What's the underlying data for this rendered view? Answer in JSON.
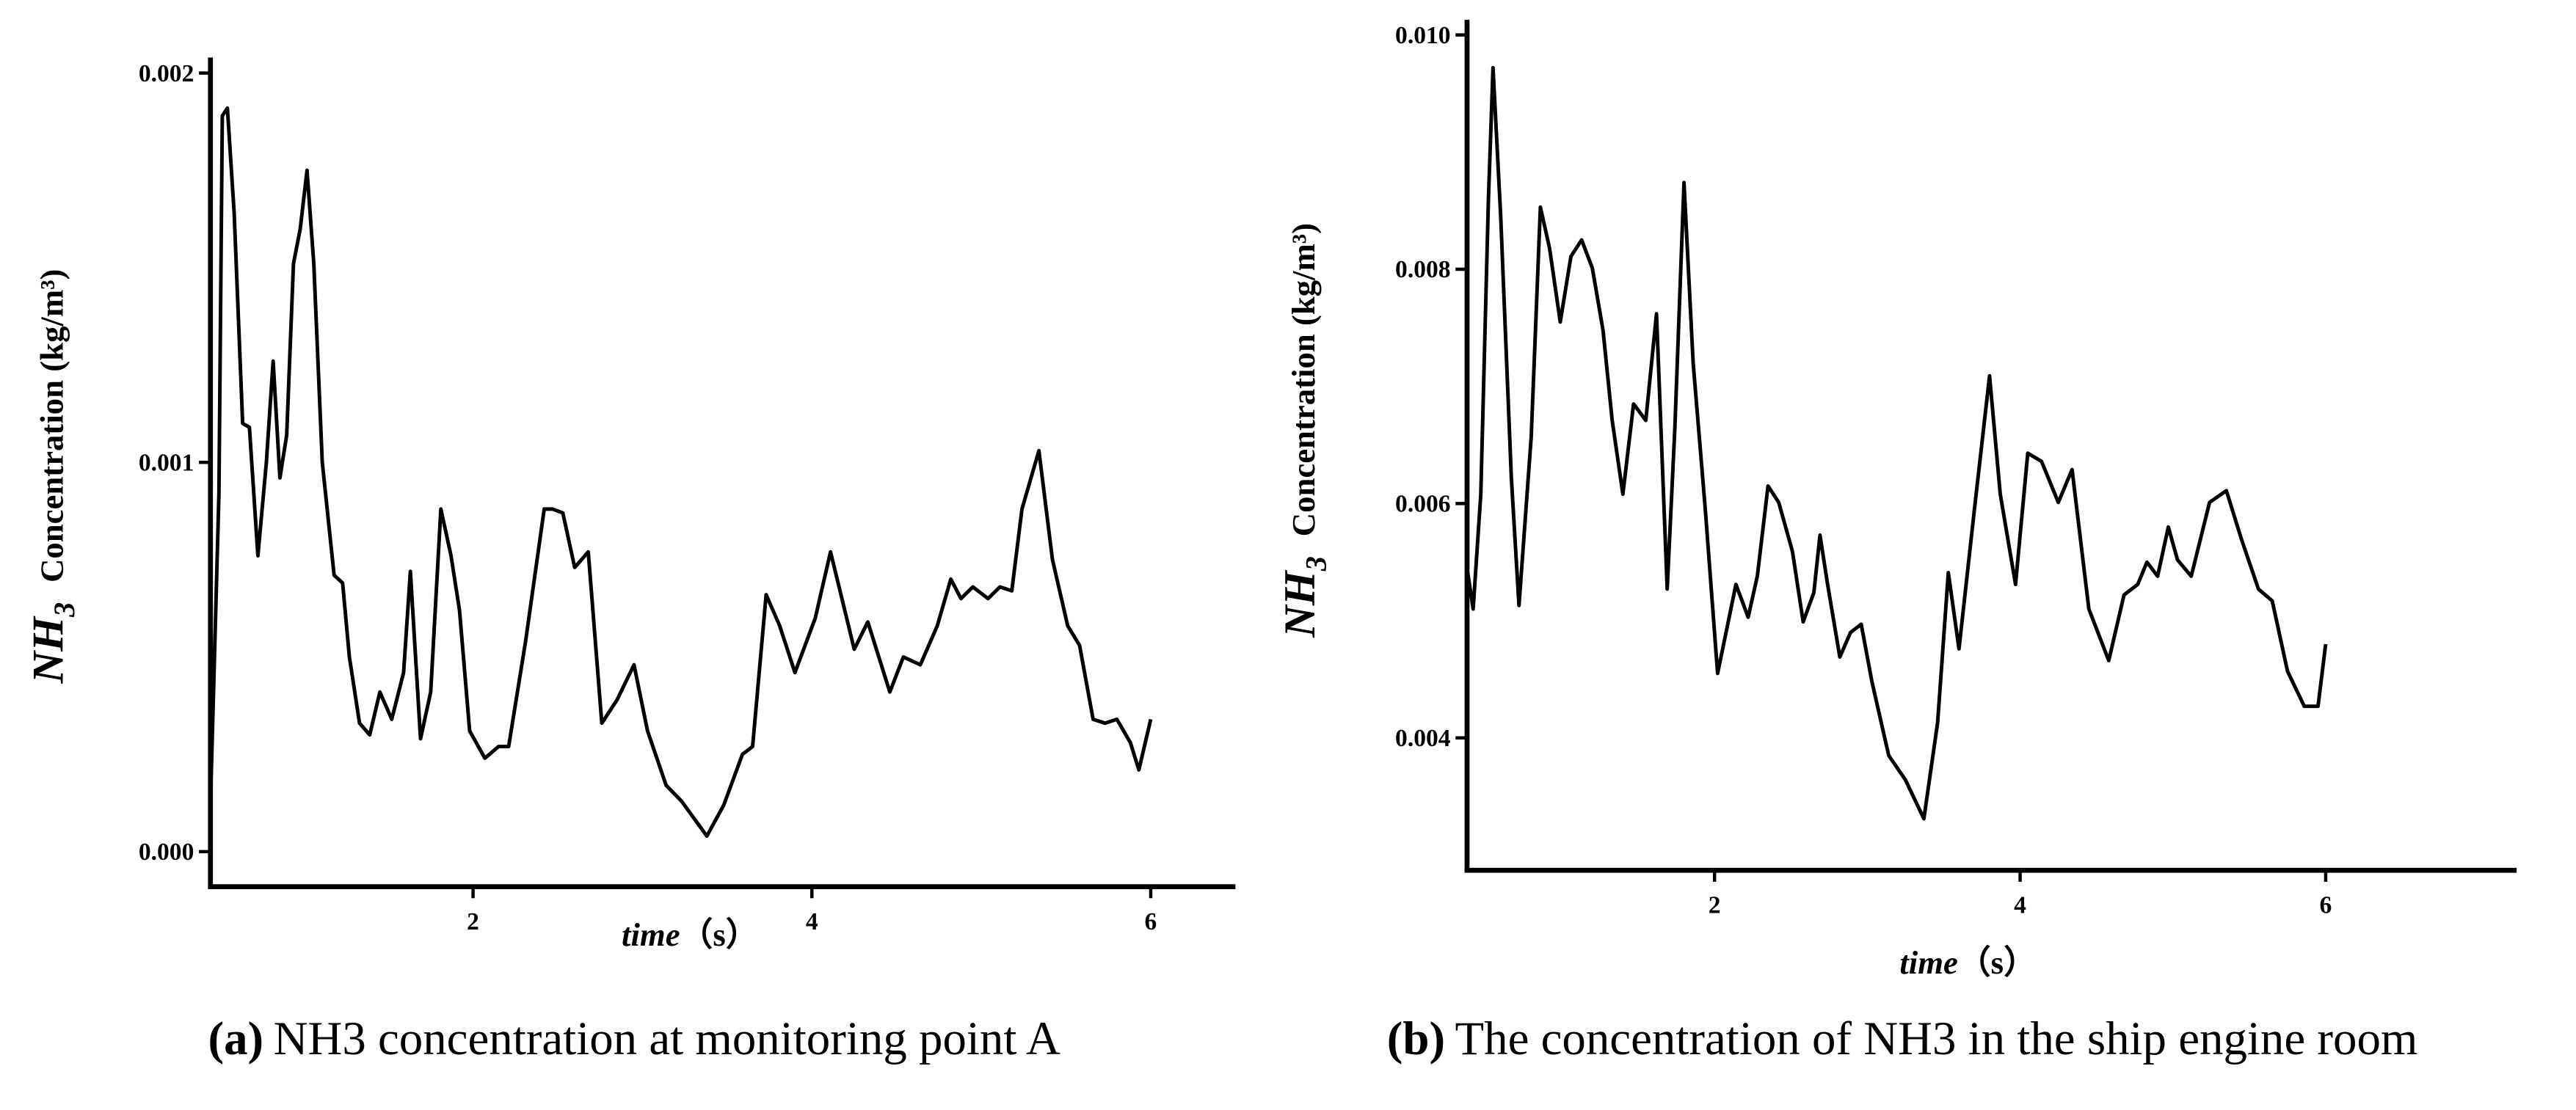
{
  "chart_data": [
    {
      "type": "line",
      "color": "#000000",
      "x_label_var": "time",
      "x_label_unit": "（s）",
      "y_label_species": "NH",
      "y_label_subscript": "3",
      "y_label_text": "Concentration (kg/m³)",
      "caption_label": "(a)",
      "caption": "NH3 concentration at monitoring point A",
      "xlim": [
        0.45,
        6.5
      ],
      "xticks": [
        2,
        4,
        6
      ],
      "ylim": [
        -9e-05,
        0.00204
      ],
      "yticks": [
        {
          "value": 0,
          "label": "0.000"
        },
        0.001,
        0.002
      ],
      "x": [
        0.45,
        0.5,
        0.52,
        0.55,
        0.59,
        0.64,
        0.68,
        0.73,
        0.78,
        0.82,
        0.86,
        0.9,
        0.94,
        0.98,
        1.02,
        1.06,
        1.11,
        1.18,
        1.23,
        1.27,
        1.33,
        1.39,
        1.45,
        1.52,
        1.59,
        1.63,
        1.69,
        1.75,
        1.81,
        1.87,
        1.92,
        1.98,
        2.07,
        2.15,
        2.21,
        2.31,
        2.42,
        2.47,
        2.53,
        2.6,
        2.68,
        2.76,
        2.85,
        2.95,
        3.03,
        3.14,
        3.23,
        3.38,
        3.48,
        3.59,
        3.65,
        3.73,
        3.81,
        3.9,
        4.02,
        4.11,
        4.25,
        4.33,
        4.46,
        4.54,
        4.64,
        4.74,
        4.82,
        4.88,
        4.95,
        5.04,
        5.11,
        5.18,
        5.24,
        5.34,
        5.42,
        5.51,
        5.58,
        5.66,
        5.73,
        5.8,
        5.88,
        5.93,
        6.0
      ],
      "values": [
        0.00012,
        0.00092,
        0.00189,
        0.00191,
        0.00164,
        0.0011,
        0.00109,
        0.00076,
        0.001,
        0.00126,
        0.00096,
        0.00107,
        0.00151,
        0.0016,
        0.00175,
        0.00151,
        0.001,
        0.00071,
        0.00069,
        0.0005,
        0.00033,
        0.0003,
        0.00041,
        0.00034,
        0.00046,
        0.00072,
        0.00029,
        0.00041,
        0.00088,
        0.00076,
        0.00062,
        0.00031,
        0.00024,
        0.00027,
        0.00027,
        0.00054,
        0.00088,
        0.00088,
        0.00087,
        0.00073,
        0.00077,
        0.00033,
        0.00039,
        0.00048,
        0.00031,
        0.00017,
        0.00013,
        4e-05,
        0.00012,
        0.00025,
        0.00027,
        0.00066,
        0.00058,
        0.00046,
        0.0006,
        0.00077,
        0.00052,
        0.00059,
        0.00041,
        0.0005,
        0.00048,
        0.00058,
        0.0007,
        0.00065,
        0.00068,
        0.00065,
        0.00068,
        0.00067,
        0.00088,
        0.00103,
        0.00075,
        0.00058,
        0.00053,
        0.00034,
        0.00033,
        0.00034,
        0.00028,
        0.00021,
        0.00034
      ]
    },
    {
      "type": "line",
      "color": "#000000",
      "x_label_var": "time",
      "x_label_unit": "（s）",
      "y_label_species": "NH",
      "y_label_subscript": "3",
      "y_label_text": "Concentration (kg/m³)",
      "caption_label": "(b)",
      "caption": "The concentration of NH3 in the ship engine room",
      "xlim": [
        0.38,
        7.25
      ],
      "xticks": [
        2,
        4,
        6
      ],
      "ylim": [
        0.00287,
        0.01013
      ],
      "yticks": [
        0.004,
        0.006,
        0.008,
        {
          "value": 0.01,
          "label": "0.010"
        }
      ],
      "x": [
        0.38,
        0.42,
        0.47,
        0.52,
        0.55,
        0.6,
        0.67,
        0.72,
        0.8,
        0.86,
        0.92,
        0.99,
        1.06,
        1.13,
        1.2,
        1.27,
        1.33,
        1.4,
        1.47,
        1.55,
        1.62,
        1.69,
        1.74,
        1.8,
        1.86,
        1.94,
        2.02,
        2.14,
        2.22,
        2.28,
        2.35,
        2.42,
        2.51,
        2.58,
        2.65,
        2.69,
        2.74,
        2.82,
        2.89,
        2.96,
        3.03,
        3.14,
        3.25,
        3.37,
        3.46,
        3.53,
        3.6,
        3.7,
        3.8,
        3.87,
        3.97,
        4.05,
        4.14,
        4.25,
        4.34,
        4.45,
        4.58,
        4.68,
        4.77,
        4.83,
        4.9,
        4.97,
        5.03,
        5.12,
        5.24,
        5.35,
        5.45,
        5.56,
        5.65,
        5.75,
        5.86,
        5.95,
        6.0
      ],
      "values": [
        0.00545,
        0.0051,
        0.00608,
        0.0086,
        0.00972,
        0.00846,
        0.00622,
        0.00513,
        0.00657,
        0.00853,
        0.00818,
        0.00755,
        0.00811,
        0.00825,
        0.00801,
        0.00748,
        0.00671,
        0.00608,
        0.00685,
        0.00671,
        0.00762,
        0.00527,
        0.00664,
        0.00874,
        0.0072,
        0.00594,
        0.00455,
        0.00531,
        0.00503,
        0.00538,
        0.00615,
        0.00601,
        0.00559,
        0.00499,
        0.00524,
        0.00573,
        0.00531,
        0.00469,
        0.0049,
        0.00497,
        0.00448,
        0.00385,
        0.00364,
        0.00331,
        0.00413,
        0.00541,
        0.00476,
        0.00594,
        0.00709,
        0.00608,
        0.00531,
        0.00643,
        0.00636,
        0.00601,
        0.00629,
        0.0051,
        0.00466,
        0.00522,
        0.00531,
        0.0055,
        0.00538,
        0.0058,
        0.00552,
        0.00538,
        0.00601,
        0.00611,
        0.00569,
        0.00527,
        0.00517,
        0.00457,
        0.00427,
        0.00427,
        0.0048
      ]
    }
  ]
}
